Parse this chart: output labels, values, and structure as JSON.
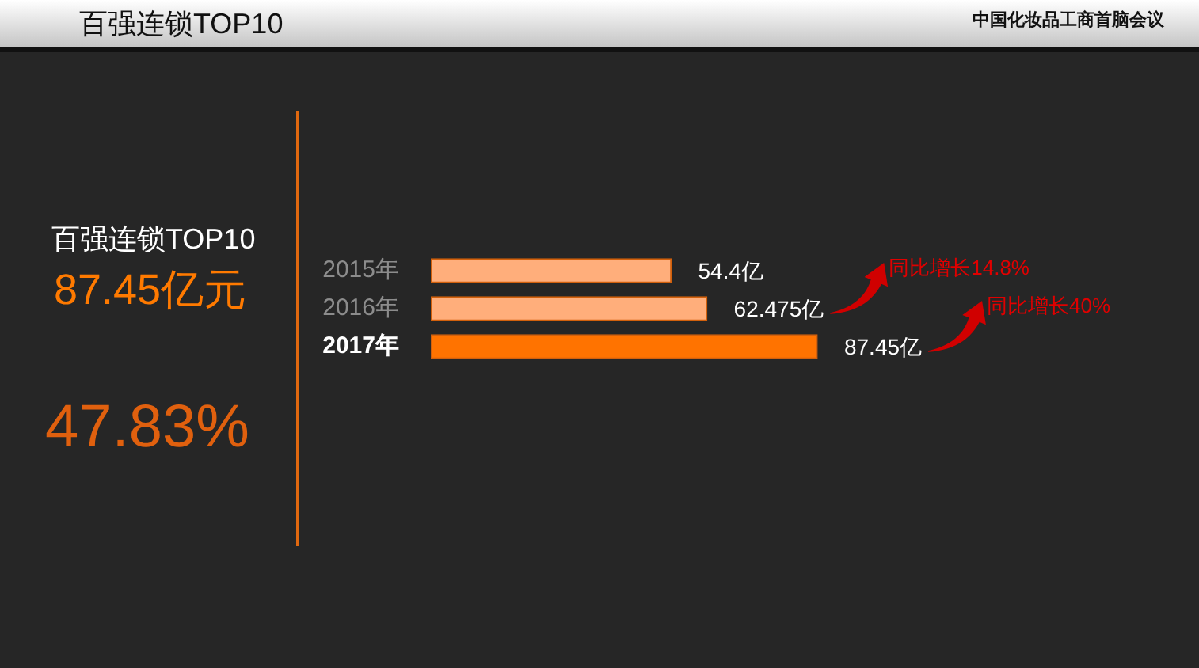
{
  "chart_data": {
    "type": "bar",
    "orientation": "horizontal",
    "title": "百强连锁TOP10",
    "categories": [
      "2015年",
      "2016年",
      "2017年"
    ],
    "values": [
      54.4,
      62.475,
      87.45
    ],
    "colors": [
      "#ffae7b",
      "#ffae7b",
      "#ff7300"
    ],
    "value_labels": [
      "54.4亿",
      "62.475亿",
      "87.45亿"
    ],
    "tick_labels": "y",
    "annotations": [
      "中国化妆品工商首脑会议",
      "百强连锁TOP10",
      "87.45亿元",
      "47.83%",
      "同比增长14.8%",
      "同比增长40%"
    ]
  }
}
